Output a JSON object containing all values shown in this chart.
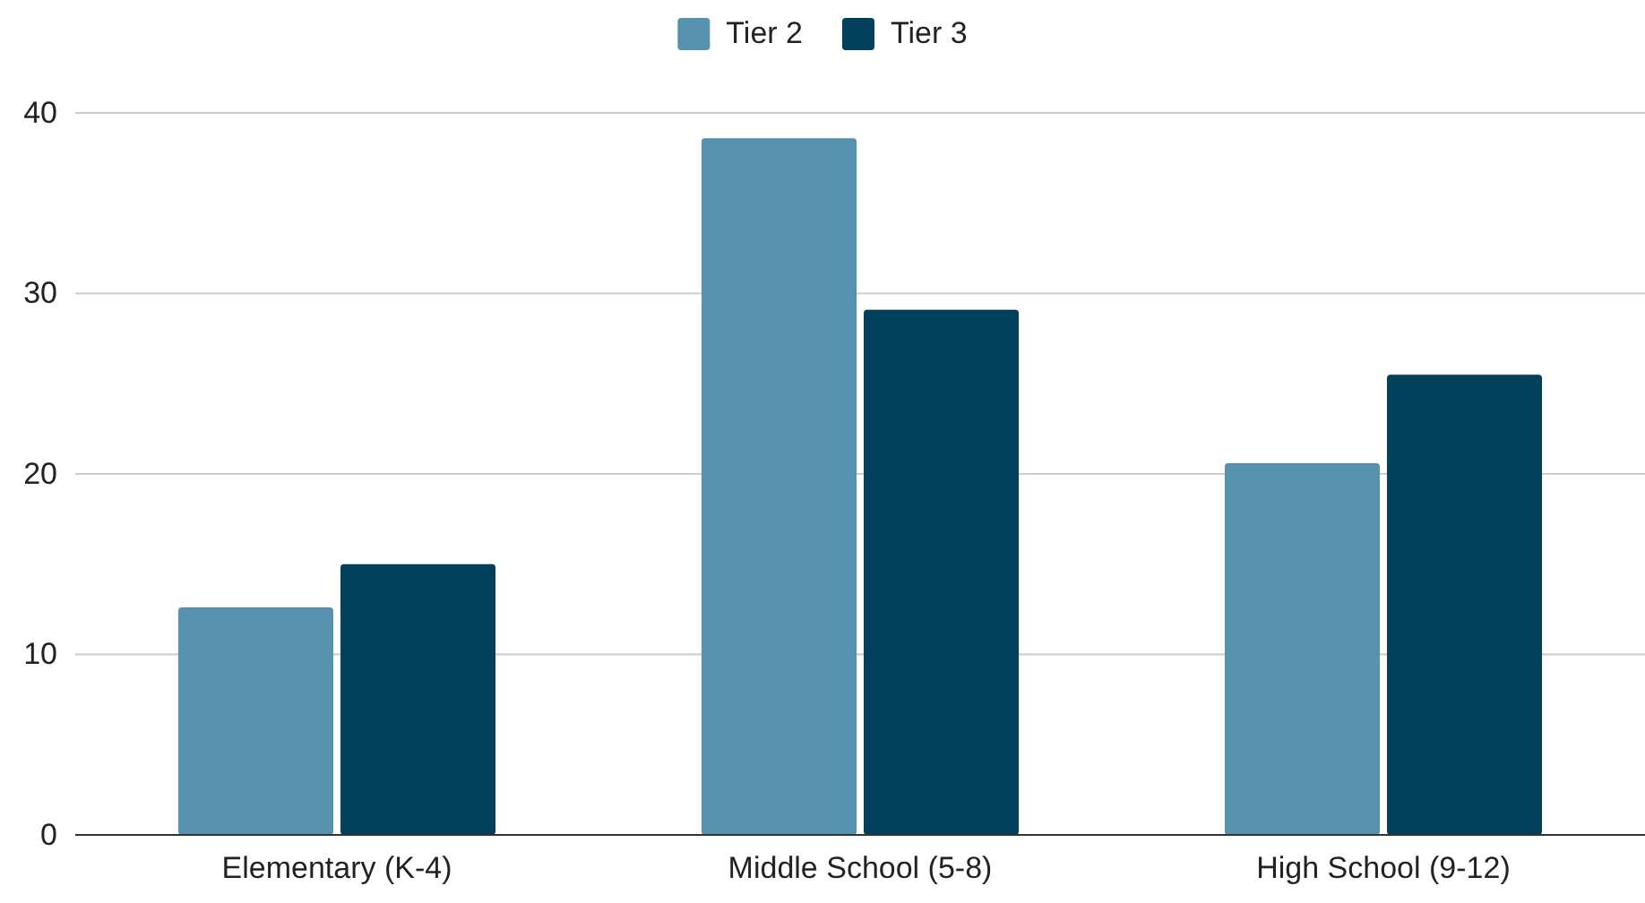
{
  "chart_data": {
    "type": "bar",
    "categories": [
      "Elementary (K-4)",
      "Middle School (5-8)",
      "High School (9-12)"
    ],
    "series": [
      {
        "name": "Tier 2",
        "color": "#5691ad",
        "values": [
          12.6,
          38.6,
          20.6
        ]
      },
      {
        "name": "Tier 3",
        "color": "#03405c",
        "values": [
          15.0,
          29.1,
          25.5
        ]
      }
    ],
    "ylim": [
      0,
      40
    ],
    "yticks": [
      0,
      10,
      20,
      30,
      40
    ],
    "grid": "y",
    "legend": "top"
  }
}
